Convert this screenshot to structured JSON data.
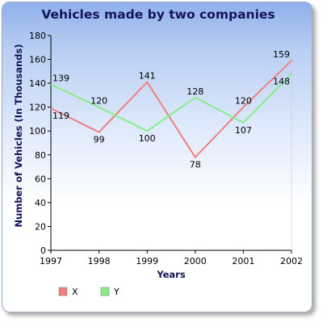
{
  "chart_data": {
    "type": "line",
    "title": "Vehicles made by two companies",
    "xlabel": "Years",
    "ylabel": "Number of Vehicles (In Thousands)",
    "x": [
      "1997",
      "1998",
      "1999",
      "2000",
      "2001",
      "2002"
    ],
    "ylim": [
      0,
      180
    ],
    "yticks": [
      0,
      20,
      40,
      60,
      80,
      100,
      120,
      140,
      160,
      180
    ],
    "grid": false,
    "legend": "bottom-left",
    "series": [
      {
        "name": "X",
        "color": "#f08080",
        "values": [
          119,
          99,
          141,
          78,
          120,
          159
        ]
      },
      {
        "name": "Y",
        "color": "#88ee88",
        "values": [
          139,
          120,
          100,
          128,
          107,
          148
        ]
      }
    ]
  }
}
